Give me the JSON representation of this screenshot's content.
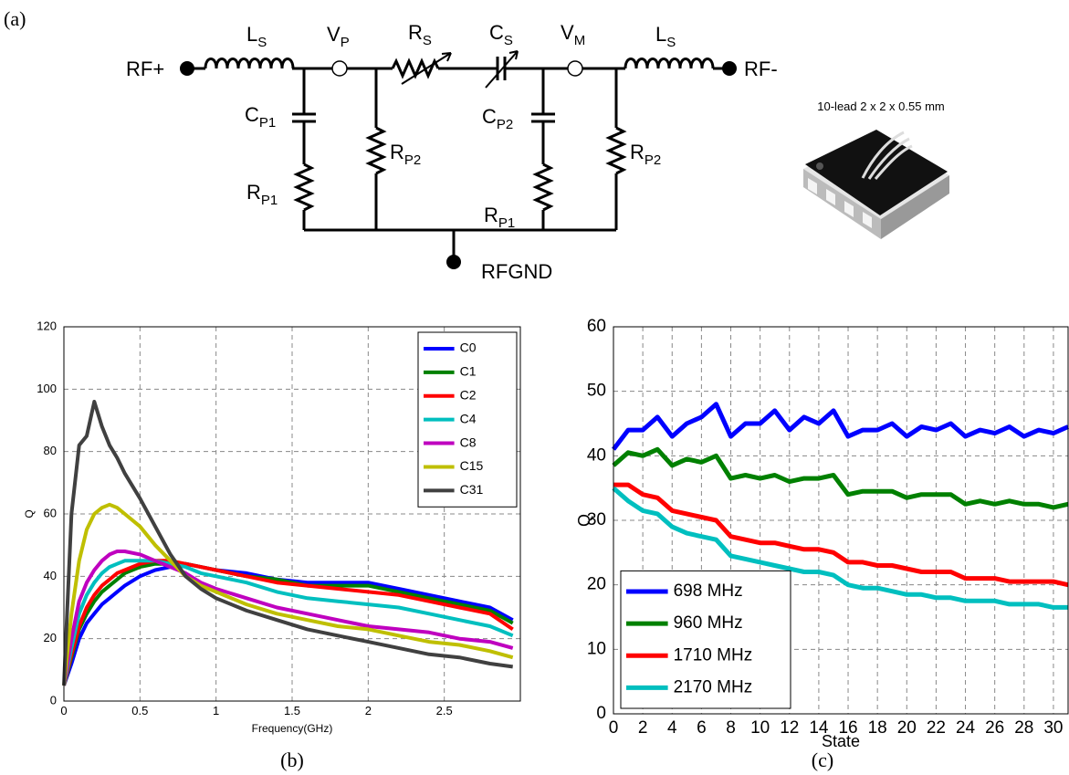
{
  "panel_label": "(a)",
  "circuit": {
    "port_left": "RF+",
    "port_right": "RF-",
    "ground": "RFGND",
    "components": [
      {
        "symbol": "L",
        "sub": "S"
      },
      {
        "symbol": "V",
        "sub": "P"
      },
      {
        "symbol": "R",
        "sub": "S"
      },
      {
        "symbol": "C",
        "sub": "S"
      },
      {
        "symbol": "V",
        "sub": "M"
      },
      {
        "symbol": "L",
        "sub": "S"
      },
      {
        "symbol": "C",
        "sub": "P1"
      },
      {
        "symbol": "R",
        "sub": "P1"
      },
      {
        "symbol": "R",
        "sub": "P2"
      },
      {
        "symbol": "C",
        "sub": "P2"
      },
      {
        "symbol": "R",
        "sub": "P1"
      },
      {
        "symbol": "R",
        "sub": "P2"
      }
    ]
  },
  "package_label": "10-lead 2 x 2 x 0.55 mm",
  "chart_data": [
    {
      "type": "line",
      "caption": "(b)",
      "xlabel": "Frequency(GHz)",
      "ylabel": "Q",
      "xlim": [
        0,
        3
      ],
      "ylim": [
        0,
        120
      ],
      "xticks": [
        0,
        0.5,
        1,
        1.5,
        2,
        2.5
      ],
      "yticks": [
        0,
        20,
        40,
        60,
        80,
        100,
        120
      ],
      "grid": true,
      "legend": "upper right",
      "x": [
        0,
        0.05,
        0.1,
        0.15,
        0.2,
        0.25,
        0.3,
        0.35,
        0.4,
        0.5,
        0.6,
        0.7,
        0.8,
        0.9,
        1.0,
        1.2,
        1.4,
        1.6,
        1.8,
        2.0,
        2.2,
        2.4,
        2.6,
        2.8,
        2.95
      ],
      "series": [
        {
          "name": "C0",
          "color": "#0000ff",
          "values": [
            5,
            12,
            20,
            25,
            28,
            31,
            33,
            35,
            37,
            40,
            42,
            43,
            44,
            43,
            42,
            41,
            39,
            38,
            38,
            38,
            36,
            34,
            32,
            30,
            26
          ]
        },
        {
          "name": "C1",
          "color": "#008000",
          "values": [
            5,
            14,
            23,
            28,
            32,
            35,
            37,
            39,
            41,
            43,
            44,
            44,
            44,
            43,
            42,
            40,
            39,
            37,
            37,
            37,
            35,
            33,
            31,
            29,
            25
          ]
        },
        {
          "name": "C2",
          "color": "#ff0000",
          "values": [
            5,
            15,
            24,
            30,
            34,
            37,
            39,
            41,
            42,
            44,
            45,
            45,
            44,
            43,
            42,
            40,
            38,
            37,
            36,
            35,
            34,
            32,
            30,
            28,
            23
          ]
        },
        {
          "name": "C4",
          "color": "#00bfbf",
          "values": [
            5,
            17,
            28,
            34,
            38,
            41,
            43,
            44,
            45,
            45,
            45,
            44,
            43,
            41,
            40,
            38,
            35,
            33,
            32,
            31,
            30,
            28,
            26,
            24,
            21
          ]
        },
        {
          "name": "C8",
          "color": "#bf00bf",
          "values": [
            5,
            20,
            32,
            38,
            42,
            45,
            47,
            48,
            48,
            47,
            45,
            43,
            41,
            38,
            36,
            33,
            30,
            28,
            26,
            24,
            23,
            22,
            20,
            19,
            17
          ]
        },
        {
          "name": "C15",
          "color": "#bfbf00",
          "values": [
            5,
            28,
            45,
            55,
            60,
            62,
            63,
            62,
            60,
            56,
            50,
            45,
            40,
            37,
            35,
            31,
            28,
            26,
            24,
            23,
            21,
            19,
            18,
            16,
            14
          ]
        },
        {
          "name": "C31",
          "color": "#404040",
          "values": [
            5,
            60,
            82,
            85,
            96,
            88,
            82,
            78,
            73,
            65,
            56,
            47,
            40,
            36,
            33,
            29,
            26,
            23,
            21,
            19,
            17,
            15,
            14,
            12,
            11
          ]
        }
      ]
    },
    {
      "type": "line",
      "caption": "(c)",
      "xlabel": "State",
      "ylabel": "Q",
      "xlim": [
        0,
        31
      ],
      "ylim": [
        0,
        60
      ],
      "xticks": [
        0,
        2,
        4,
        6,
        8,
        10,
        12,
        14,
        16,
        18,
        20,
        22,
        24,
        26,
        28,
        30
      ],
      "yticks": [
        0,
        10,
        20,
        30,
        40,
        50,
        60
      ],
      "grid": true,
      "legend": "lower left",
      "x": [
        0,
        1,
        2,
        3,
        4,
        5,
        6,
        7,
        8,
        9,
        10,
        11,
        12,
        13,
        14,
        15,
        16,
        17,
        18,
        19,
        20,
        21,
        22,
        23,
        24,
        25,
        26,
        27,
        28,
        29,
        30,
        31
      ],
      "series": [
        {
          "name": "698 MHz",
          "color": "#0000ff",
          "values": [
            41,
            44,
            44,
            46,
            43,
            45,
            46,
            48,
            43,
            45,
            45,
            47,
            44,
            46,
            45,
            47,
            43,
            44,
            44,
            45,
            43,
            44.5,
            44,
            45,
            43,
            44,
            43.5,
            44.5,
            43,
            44,
            43.5,
            44.5
          ]
        },
        {
          "name": "960 MHz",
          "color": "#008000",
          "values": [
            38.5,
            40.5,
            40,
            41,
            38.5,
            39.5,
            39,
            40,
            36.5,
            37,
            36.5,
            37,
            36,
            36.5,
            36.5,
            37,
            34,
            34.5,
            34.5,
            34.5,
            33.5,
            34,
            34,
            34,
            32.5,
            33,
            32.5,
            33,
            32.5,
            32.5,
            32,
            32.5
          ]
        },
        {
          "name": "1710 MHz",
          "color": "#ff0000",
          "values": [
            35.5,
            35.5,
            34,
            33.5,
            31.5,
            31,
            30.5,
            30,
            27.5,
            27,
            26.5,
            26.5,
            26,
            25.5,
            25.5,
            25,
            23.5,
            23.5,
            23,
            23,
            22.5,
            22,
            22,
            22,
            21,
            21,
            21,
            20.5,
            20.5,
            20.5,
            20.5,
            20
          ]
        },
        {
          "name": "2170 MHz",
          "color": "#00bfbf",
          "values": [
            35,
            33,
            31.5,
            31,
            29,
            28,
            27.5,
            27,
            24.5,
            24,
            23.5,
            23,
            22.5,
            22,
            22,
            21.5,
            20,
            19.5,
            19.5,
            19,
            18.5,
            18.5,
            18,
            18,
            17.5,
            17.5,
            17.5,
            17,
            17,
            17,
            16.5,
            16.5
          ]
        }
      ]
    }
  ]
}
